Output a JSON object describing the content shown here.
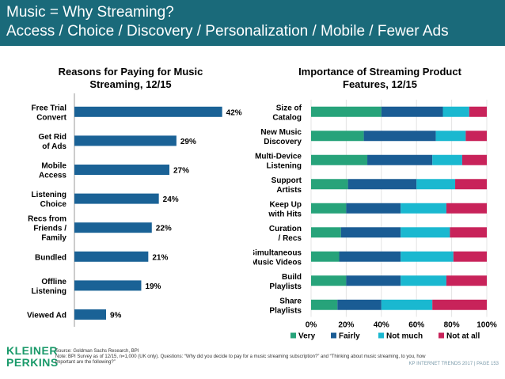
{
  "header": {
    "line1": "Music = Why Streaming?",
    "line2": "Access / Choice / Discovery / Personalization / Mobile / Fewer Ads",
    "color": "#1a6a7a"
  },
  "chart_data": [
    {
      "type": "bar",
      "orientation": "horizontal",
      "title_line1": "Reasons for Paying for Music",
      "title_line2": "Streaming, 12/15",
      "categories": [
        [
          "Free Trial",
          "Convert"
        ],
        [
          "Get Rid",
          "of Ads"
        ],
        [
          "Mobile",
          "Access"
        ],
        [
          "Listening",
          "Choice"
        ],
        [
          "Recs from",
          "Friends /",
          "Family"
        ],
        [
          "Bundled"
        ],
        [
          "Offline",
          "Listening"
        ],
        [
          "Viewed Ad"
        ]
      ],
      "values": [
        42,
        29,
        27,
        24,
        22,
        21,
        19,
        9
      ],
      "value_labels": [
        "42%",
        "29%",
        "27%",
        "24%",
        "22%",
        "21%",
        "19%",
        "9%"
      ],
      "bar_color": "#1a6296",
      "xlim": [
        0,
        45
      ]
    },
    {
      "type": "bar",
      "orientation": "horizontal",
      "stacked": true,
      "title_line1": "Importance of Streaming Product",
      "title_line2": "Features, 12/15",
      "categories": [
        [
          "Size of",
          "Catalog"
        ],
        [
          "New Music",
          "Discovery"
        ],
        [
          "Multi-Device",
          "Listening"
        ],
        [
          "Support",
          "Artists"
        ],
        [
          "Keep Up",
          "with Hits"
        ],
        [
          "Curation",
          "/ Recs"
        ],
        [
          "Simultaneous",
          "Music Videos"
        ],
        [
          "Build",
          "Playlists"
        ],
        [
          "Share",
          "Playlists"
        ]
      ],
      "series": [
        {
          "name": "Very",
          "color": "#27a37a",
          "values": [
            40,
            30,
            32,
            21,
            20,
            17,
            16,
            20,
            15
          ]
        },
        {
          "name": "Fairly",
          "color": "#1a5c94",
          "values": [
            35,
            41,
            37,
            39,
            31,
            34,
            35,
            31,
            25
          ]
        },
        {
          "name": "Not much",
          "color": "#1ab8d0",
          "values": [
            15,
            17,
            17,
            22,
            26,
            28,
            30,
            26,
            29
          ]
        },
        {
          "name": "Not at all",
          "color": "#c8235a",
          "values": [
            10,
            12,
            14,
            18,
            23,
            21,
            19,
            23,
            31
          ]
        }
      ],
      "xlim": [
        0,
        100
      ],
      "tick_labels": [
        "0%",
        "20%",
        "40%",
        "60%",
        "80%",
        "100%"
      ],
      "legend_position": "bottom"
    }
  ],
  "footer": {
    "source": "Source: Goldman Sachs Research, BPI",
    "note": "Note: BPI Survey as of 12/15, n=1,000 (UK only). Questions: “Why did you decide to pay for a music streaming subscription?” and “Thinking about music streaming, to you, how important are the following?”",
    "logo_line1": "KLEINER",
    "logo_line2": "PERKINS",
    "page": "KP INTERNET TRENDS 2017  |  PAGE 153"
  }
}
